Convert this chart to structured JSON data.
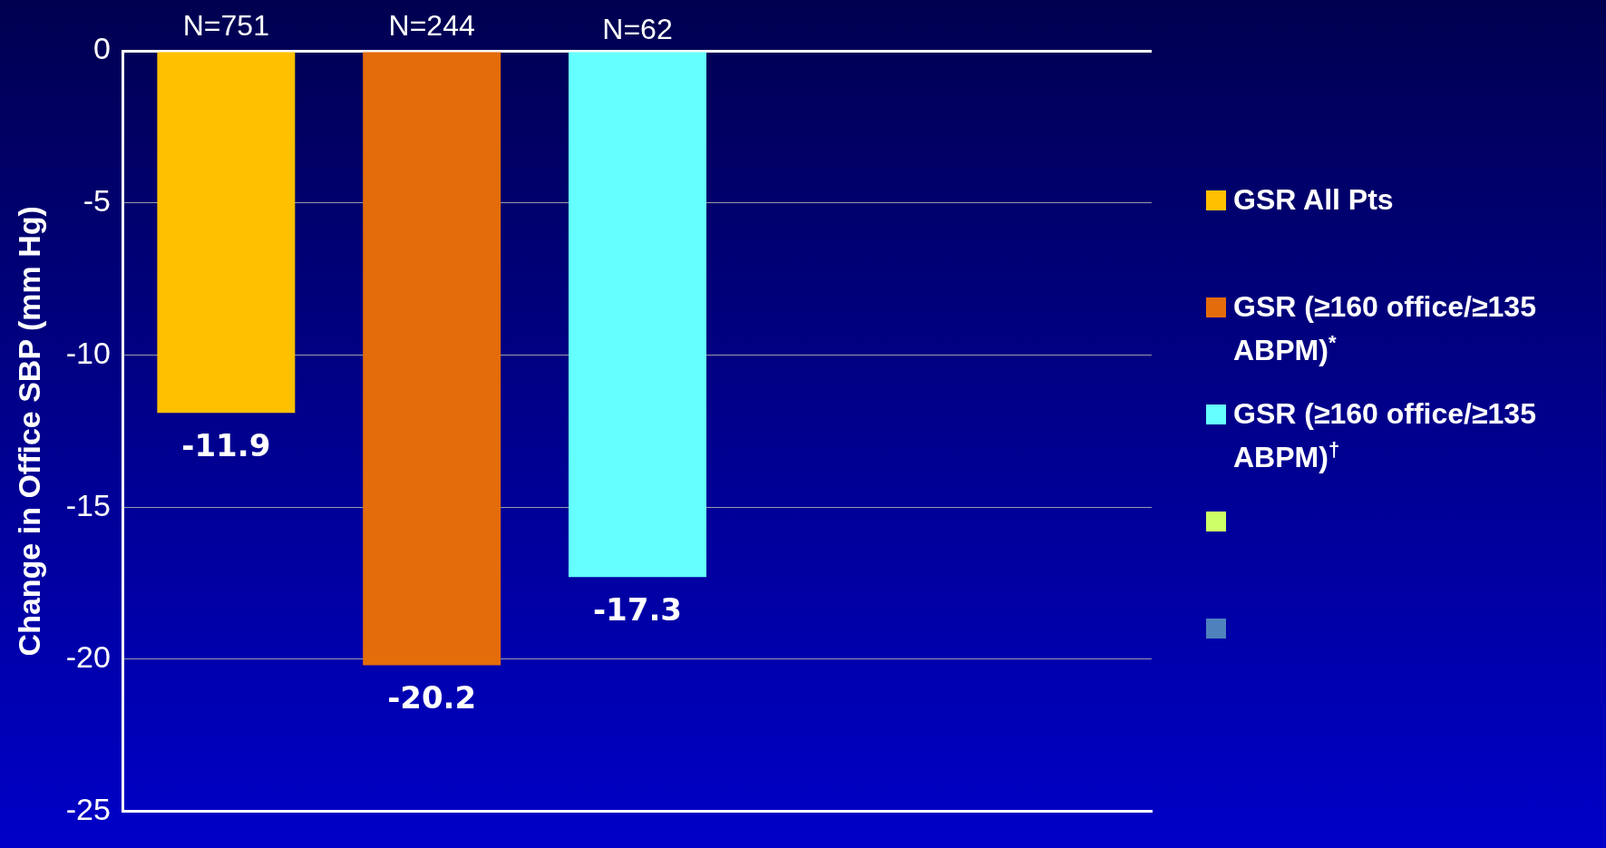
{
  "chart_data": {
    "type": "bar",
    "ylabel": "Change in Office SBP (mm Hg)",
    "categories": [
      null,
      null,
      null,
      null,
      null
    ],
    "series": [
      {
        "name": "GSR All Pts",
        "color": "#ffc000",
        "values": [
          -11.9,
          null,
          null,
          null,
          null
        ]
      },
      {
        "name": "GSR (≥160 office/≥135 ABPM)$^{*}$",
        "color": "#e46c0a",
        "values": [
          null,
          -20.2,
          null,
          null,
          null
        ]
      },
      {
        "name": "GSR (≥160 office/≥135 ABPM)$^{†}$",
        "color": "#66ffff",
        "values": [
          null,
          null,
          -17.3,
          null,
          null
        ]
      },
      {
        "color": "#ccff66",
        "values": [
          null,
          null,
          null,
          null,
          null
        ]
      },
      {
        "color": "#4f81bd",
        "values": [
          null,
          null,
          null,
          null,
          null
        ]
      }
    ],
    "ylim": [
      -25,
      0
    ],
    "yticks": [
      -25,
      -20,
      -15,
      -10,
      -5,
      0
    ],
    "grid": "y",
    "legend": "right",
    "data_labels": true,
    "annotations": [
      "N=751",
      "N=244",
      "N=62"
    ]
  }
}
